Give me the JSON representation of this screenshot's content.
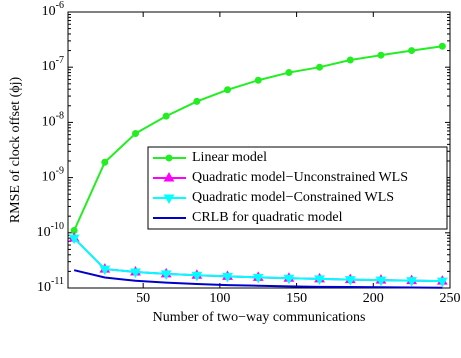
{
  "chart_data": {
    "type": "line",
    "xlabel": "Number of two−way communications",
    "ylabel": "RMSE of clock offset (ϕj)",
    "x": [
      5,
      25,
      45,
      65,
      85,
      105,
      125,
      145,
      165,
      185,
      205,
      225,
      245
    ],
    "series": [
      {
        "name": "Linear model",
        "color": "#22ee22",
        "marker": "circle",
        "values": [
          1.1e-10,
          1.9e-09,
          6.3e-09,
          1.3e-08,
          2.4e-08,
          3.9e-08,
          5.8e-08,
          8e-08,
          1e-07,
          1.35e-07,
          1.65e-07,
          2e-07,
          2.4e-07
        ]
      },
      {
        "name": "Quadratic model−Unconstrained WLS",
        "color": "#ff00ff",
        "marker": "triangle-up",
        "values": [
          8e-11,
          2.2e-11,
          1.95e-11,
          1.8e-11,
          1.7e-11,
          1.62e-11,
          1.56e-11,
          1.5e-11,
          1.46e-11,
          1.42e-11,
          1.39e-11,
          1.36e-11,
          1.33e-11
        ]
      },
      {
        "name": "Quadratic model−Constrained WLS",
        "color": "#00ffff",
        "marker": "triangle-down",
        "values": [
          8e-11,
          2.2e-11,
          1.95e-11,
          1.8e-11,
          1.7e-11,
          1.62e-11,
          1.56e-11,
          1.5e-11,
          1.46e-11,
          1.42e-11,
          1.39e-11,
          1.36e-11,
          1.33e-11
        ]
      },
      {
        "name": "CRLB for quadratic model",
        "color": "#0000cc",
        "marker": "none",
        "values": [
          2.1e-11,
          1.55e-11,
          1.35e-11,
          1.25e-11,
          1.18e-11,
          1.13e-11,
          1.1e-11,
          1.07e-11,
          1.05e-11,
          1.04e-11,
          1.03e-11,
          1.02e-11,
          1.01e-11
        ]
      }
    ],
    "xlim": [
      1,
      250
    ],
    "xticks": [
      50,
      100,
      150,
      200,
      250
    ],
    "ylim": [
      1e-11,
      1e-06
    ],
    "yticks": [
      {
        "value": 1e-11,
        "label": "10^-11"
      },
      {
        "value": 1e-10,
        "label": "10^-10"
      },
      {
        "value": 1e-09,
        "label": "10^-9"
      },
      {
        "value": 1e-08,
        "label": "10^-8"
      },
      {
        "value": 1e-07,
        "label": "10^-7"
      },
      {
        "value": 1e-06,
        "label": "10^-6"
      }
    ],
    "yscale": "log",
    "grid": false,
    "legend": "center right"
  }
}
